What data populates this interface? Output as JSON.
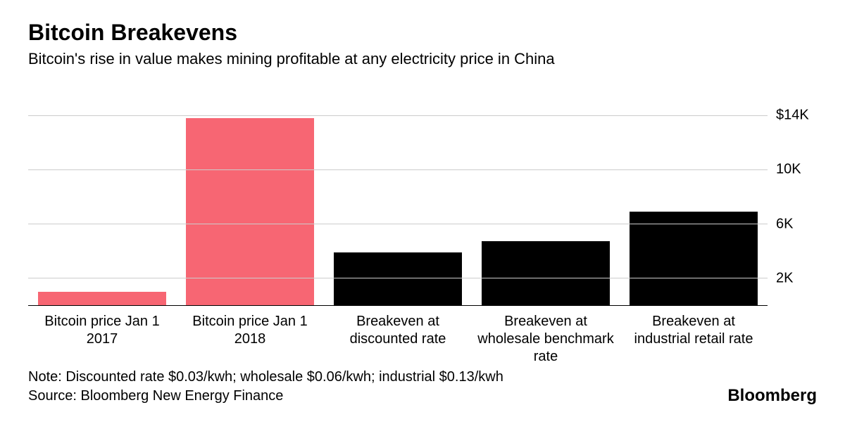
{
  "title": "Bitcoin Breakevens",
  "subtitle": "Bitcoin's rise in value makes mining profitable at any electricity price in China",
  "chart": {
    "type": "bar",
    "ylim": [
      0,
      16000
    ],
    "yticks": [
      {
        "value": 14000,
        "label": "$14K"
      },
      {
        "value": 10000,
        "label": "10K"
      },
      {
        "value": 6000,
        "label": "6K"
      },
      {
        "value": 2000,
        "label": "2K"
      }
    ],
    "grid_color": "#cccccc",
    "axis_color": "#000000",
    "background_color": "#ffffff",
    "label_fontsize": 20,
    "bars": [
      {
        "label": "Bitcoin price Jan 1 2017",
        "value": 1000,
        "color": "#f76673"
      },
      {
        "label": "Bitcoin price Jan 1 2018",
        "value": 13800,
        "color": "#f76673"
      },
      {
        "label": "Breakeven at discounted rate",
        "value": 3900,
        "color": "#000000"
      },
      {
        "label": "Breakeven at wholesale benchmark rate",
        "value": 4700,
        "color": "#000000"
      },
      {
        "label": "Breakeven at industrial retail rate",
        "value": 6900,
        "color": "#000000"
      }
    ]
  },
  "note": "Note: Discounted rate $0.03/kwh; wholesale $0.06/kwh; industrial $0.13/kwh",
  "source": "Source: Bloomberg New Energy Finance",
  "brand": "Bloomberg"
}
